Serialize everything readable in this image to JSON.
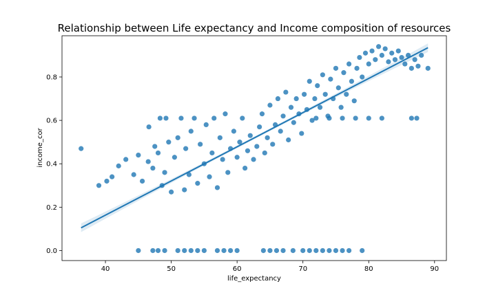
{
  "chart_data": {
    "type": "scatter",
    "title": "Relationship between Life expectancy and Income composition of resources",
    "xlabel": "life_expectancy",
    "ylabel": "income_cor",
    "xlim": [
      33.4,
      91.8
    ],
    "ylim": [
      -0.046,
      0.99
    ],
    "x_ticks": [
      40,
      50,
      60,
      70,
      80,
      90
    ],
    "y_ticks": [
      0.0,
      0.2,
      0.4,
      0.6,
      0.8
    ],
    "x_tick_labels": [
      "40",
      "50",
      "60",
      "70",
      "80",
      "90"
    ],
    "y_tick_labels": [
      "0.0",
      "0.2",
      "0.4",
      "0.6",
      "0.8"
    ],
    "grid": false,
    "legend": "none",
    "colors": {
      "points": "#1f77b4",
      "line": "#1f77b4",
      "band": "#1f77b4"
    },
    "regression_line": {
      "x": [
        36.3,
        89.0
      ],
      "y": [
        0.105,
        0.935
      ]
    },
    "points": [
      {
        "x": 36.3,
        "y": 0.47
      },
      {
        "x": 39.0,
        "y": 0.3
      },
      {
        "x": 40.2,
        "y": 0.32
      },
      {
        "x": 41.0,
        "y": 0.34
      },
      {
        "x": 42.0,
        "y": 0.39
      },
      {
        "x": 43.1,
        "y": 0.42
      },
      {
        "x": 44.3,
        "y": 0.35
      },
      {
        "x": 45.0,
        "y": 0.44
      },
      {
        "x": 45.6,
        "y": 0.32
      },
      {
        "x": 46.5,
        "y": 0.41
      },
      {
        "x": 46.6,
        "y": 0.57
      },
      {
        "x": 47.2,
        "y": 0.38
      },
      {
        "x": 47.5,
        "y": 0.48
      },
      {
        "x": 48.0,
        "y": 0.45
      },
      {
        "x": 48.3,
        "y": 0.61
      },
      {
        "x": 48.6,
        "y": 0.3
      },
      {
        "x": 49.0,
        "y": 0.36
      },
      {
        "x": 49.2,
        "y": 0.61
      },
      {
        "x": 49.6,
        "y": 0.5
      },
      {
        "x": 50.0,
        "y": 0.27
      },
      {
        "x": 50.5,
        "y": 0.43
      },
      {
        "x": 51.0,
        "y": 0.52
      },
      {
        "x": 51.5,
        "y": 0.61
      },
      {
        "x": 52.0,
        "y": 0.28
      },
      {
        "x": 52.2,
        "y": 0.47
      },
      {
        "x": 52.7,
        "y": 0.35
      },
      {
        "x": 53.0,
        "y": 0.55
      },
      {
        "x": 53.5,
        "y": 0.61
      },
      {
        "x": 54.0,
        "y": 0.31
      },
      {
        "x": 54.4,
        "y": 0.49
      },
      {
        "x": 55.0,
        "y": 0.4
      },
      {
        "x": 55.3,
        "y": 0.58
      },
      {
        "x": 55.8,
        "y": 0.34
      },
      {
        "x": 56.2,
        "y": 0.45
      },
      {
        "x": 56.5,
        "y": 0.61
      },
      {
        "x": 57.0,
        "y": 0.29
      },
      {
        "x": 57.4,
        "y": 0.52
      },
      {
        "x": 57.8,
        "y": 0.42
      },
      {
        "x": 58.2,
        "y": 0.63
      },
      {
        "x": 58.6,
        "y": 0.36
      },
      {
        "x": 59.0,
        "y": 0.47
      },
      {
        "x": 59.5,
        "y": 0.55
      },
      {
        "x": 60.0,
        "y": 0.43
      },
      {
        "x": 60.4,
        "y": 0.5
      },
      {
        "x": 60.8,
        "y": 0.61
      },
      {
        "x": 61.2,
        "y": 0.38
      },
      {
        "x": 61.6,
        "y": 0.46
      },
      {
        "x": 62.0,
        "y": 0.53
      },
      {
        "x": 62.5,
        "y": 0.42
      },
      {
        "x": 63.0,
        "y": 0.48
      },
      {
        "x": 63.4,
        "y": 0.57
      },
      {
        "x": 63.8,
        "y": 0.63
      },
      {
        "x": 64.2,
        "y": 0.45
      },
      {
        "x": 64.6,
        "y": 0.52
      },
      {
        "x": 65.0,
        "y": 0.67
      },
      {
        "x": 65.4,
        "y": 0.49
      },
      {
        "x": 65.8,
        "y": 0.58
      },
      {
        "x": 66.2,
        "y": 0.7
      },
      {
        "x": 66.6,
        "y": 0.55
      },
      {
        "x": 67.0,
        "y": 0.62
      },
      {
        "x": 67.4,
        "y": 0.73
      },
      {
        "x": 67.8,
        "y": 0.51
      },
      {
        "x": 68.2,
        "y": 0.66
      },
      {
        "x": 68.6,
        "y": 0.59
      },
      {
        "x": 69.0,
        "y": 0.7
      },
      {
        "x": 69.4,
        "y": 0.63
      },
      {
        "x": 69.8,
        "y": 0.54
      },
      {
        "x": 70.2,
        "y": 0.72
      },
      {
        "x": 70.6,
        "y": 0.65
      },
      {
        "x": 71.0,
        "y": 0.78
      },
      {
        "x": 71.4,
        "y": 0.6
      },
      {
        "x": 71.8,
        "y": 0.7
      },
      {
        "x": 72.2,
        "y": 0.76
      },
      {
        "x": 72.6,
        "y": 0.66
      },
      {
        "x": 73.0,
        "y": 0.81
      },
      {
        "x": 73.4,
        "y": 0.72
      },
      {
        "x": 73.8,
        "y": 0.62
      },
      {
        "x": 74.2,
        "y": 0.79
      },
      {
        "x": 74.6,
        "y": 0.7
      },
      {
        "x": 75.0,
        "y": 0.84
      },
      {
        "x": 75.4,
        "y": 0.75
      },
      {
        "x": 75.8,
        "y": 0.66
      },
      {
        "x": 76.2,
        "y": 0.82
      },
      {
        "x": 76.6,
        "y": 0.72
      },
      {
        "x": 77.0,
        "y": 0.86
      },
      {
        "x": 77.4,
        "y": 0.78
      },
      {
        "x": 77.8,
        "y": 0.69
      },
      {
        "x": 78.2,
        "y": 0.84
      },
      {
        "x": 78.6,
        "y": 0.89
      },
      {
        "x": 79.0,
        "y": 0.8
      },
      {
        "x": 79.5,
        "y": 0.91
      },
      {
        "x": 80.0,
        "y": 0.86
      },
      {
        "x": 80.5,
        "y": 0.92
      },
      {
        "x": 81.0,
        "y": 0.88
      },
      {
        "x": 81.5,
        "y": 0.94
      },
      {
        "x": 82.0,
        "y": 0.9
      },
      {
        "x": 82.5,
        "y": 0.93
      },
      {
        "x": 83.0,
        "y": 0.87
      },
      {
        "x": 83.5,
        "y": 0.91
      },
      {
        "x": 84.0,
        "y": 0.88
      },
      {
        "x": 84.5,
        "y": 0.92
      },
      {
        "x": 85.0,
        "y": 0.89
      },
      {
        "x": 85.5,
        "y": 0.86
      },
      {
        "x": 86.0,
        "y": 0.9
      },
      {
        "x": 86.5,
        "y": 0.84
      },
      {
        "x": 87.0,
        "y": 0.88
      },
      {
        "x": 87.5,
        "y": 0.85
      },
      {
        "x": 88.0,
        "y": 0.9
      },
      {
        "x": 89.0,
        "y": 0.84
      },
      {
        "x": 72.0,
        "y": 0.61
      },
      {
        "x": 74.0,
        "y": 0.61
      },
      {
        "x": 76.0,
        "y": 0.61
      },
      {
        "x": 78.0,
        "y": 0.61
      },
      {
        "x": 80.0,
        "y": 0.61
      },
      {
        "x": 82.0,
        "y": 0.61
      },
      {
        "x": 86.5,
        "y": 0.61
      },
      {
        "x": 87.3,
        "y": 0.61
      },
      {
        "x": 45.0,
        "y": 0.0
      },
      {
        "x": 47.2,
        "y": 0.0
      },
      {
        "x": 48.0,
        "y": 0.0
      },
      {
        "x": 49.0,
        "y": 0.0
      },
      {
        "x": 51.0,
        "y": 0.0
      },
      {
        "x": 52.0,
        "y": 0.0
      },
      {
        "x": 53.0,
        "y": 0.0
      },
      {
        "x": 54.0,
        "y": 0.0
      },
      {
        "x": 55.0,
        "y": 0.0
      },
      {
        "x": 57.0,
        "y": 0.0
      },
      {
        "x": 58.0,
        "y": 0.0
      },
      {
        "x": 59.0,
        "y": 0.0
      },
      {
        "x": 60.0,
        "y": 0.0
      },
      {
        "x": 64.0,
        "y": 0.0
      },
      {
        "x": 65.0,
        "y": 0.0
      },
      {
        "x": 66.0,
        "y": 0.0
      },
      {
        "x": 67.0,
        "y": 0.0
      },
      {
        "x": 68.5,
        "y": 0.0
      },
      {
        "x": 70.0,
        "y": 0.0
      },
      {
        "x": 71.0,
        "y": 0.0
      },
      {
        "x": 72.0,
        "y": 0.0
      },
      {
        "x": 73.0,
        "y": 0.0
      },
      {
        "x": 74.0,
        "y": 0.0
      },
      {
        "x": 75.0,
        "y": 0.0
      },
      {
        "x": 76.0,
        "y": 0.0
      },
      {
        "x": 77.0,
        "y": 0.0
      },
      {
        "x": 79.0,
        "y": 0.0
      }
    ]
  }
}
